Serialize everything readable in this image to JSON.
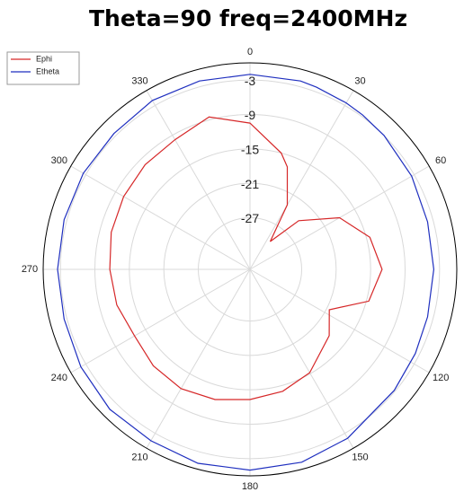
{
  "chart_data": {
    "type": "polar",
    "title": "Theta=90 freq=2400MHz",
    "x": [
      0,
      15,
      20,
      30,
      36,
      45,
      60,
      75,
      90,
      105,
      117,
      130,
      150,
      165,
      180,
      195,
      210,
      225,
      240,
      255,
      270,
      285,
      300,
      315,
      330,
      345
    ],
    "series": [
      {
        "name": "Ephi",
        "color": "#d62728",
        "values": [
          -10.5,
          -15,
          -17,
          -23,
          -30,
          -24,
          -18,
          -14.4,
          -13,
          -14.6,
          -20.5,
          -18,
          -15.2,
          -14,
          -13.3,
          -12.5,
          -12,
          -12.2,
          -12.8,
          -12,
          -11.6,
          -11,
          -10.6,
          -10.2,
          -9.9,
          -8.5
        ]
      },
      {
        "name": "Etheta",
        "color": "#1f2fbf",
        "values": [
          -2,
          -2,
          -2.2,
          -2.5,
          -2.7,
          -3,
          -3.5,
          -4,
          -4,
          -4,
          -3.7,
          -3.2,
          -2,
          -1.2,
          -1,
          -1,
          -1.5,
          -1.5,
          -2,
          -2.5,
          -2.5,
          -2.5,
          -2.5,
          -2.5,
          -2,
          -2
        ]
      }
    ],
    "rlim": [
      -36,
      0
    ],
    "rticks": [
      -3,
      -9,
      -15,
      -21,
      -27
    ],
    "xticks": [
      0,
      30,
      60,
      120,
      150,
      180,
      210,
      240,
      270,
      300,
      330
    ],
    "legend": "upper left",
    "grid": true
  }
}
